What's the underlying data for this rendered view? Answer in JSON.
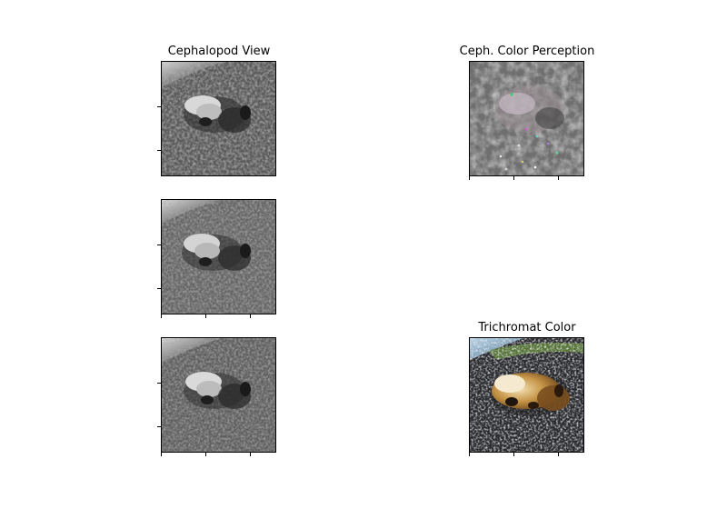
{
  "figure": {
    "panels": [
      {
        "id": "p1",
        "title": "Cephalopod View",
        "style": "grayscale",
        "y_ticks": 3,
        "x_ticks": 0
      },
      {
        "id": "p2",
        "title": "Ceph. Color Perception",
        "style": "noise",
        "y_ticks": 0,
        "x_ticks": 3
      },
      {
        "id": "p3",
        "title": "",
        "style": "grayscale",
        "y_ticks": 3,
        "x_ticks": 3
      },
      {
        "id": "p4",
        "title": "",
        "style": "grayscale",
        "y_ticks": 3,
        "x_ticks": 3
      },
      {
        "id": "p5",
        "title": "Trichromat Color",
        "style": "color",
        "y_ticks": 0,
        "x_ticks": 3
      }
    ]
  }
}
